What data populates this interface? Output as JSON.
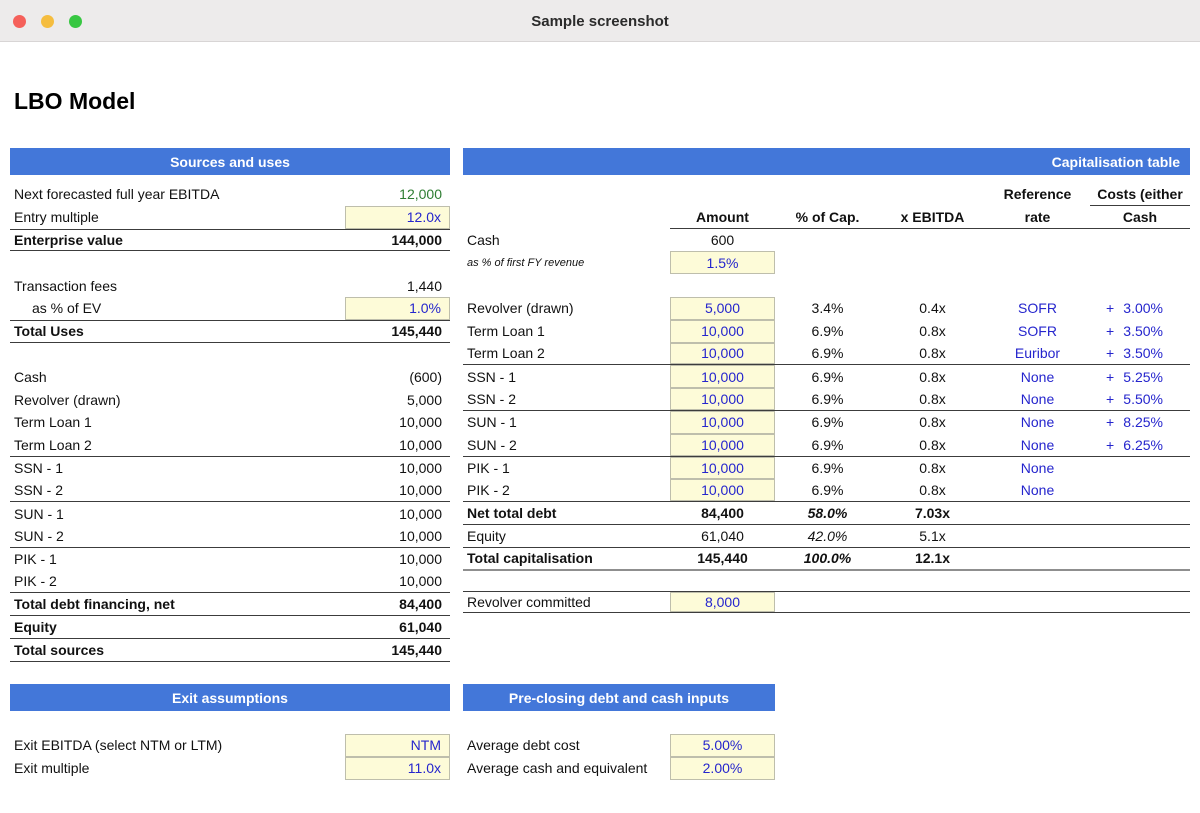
{
  "window": {
    "title": "Sample screenshot"
  },
  "page_title": "LBO Model",
  "colors": {
    "header_bar": "#4377D9",
    "input_bg": "#FDFBD8",
    "input_text": "#2525CD",
    "calc_green": "#2E7D32"
  },
  "sources_and_uses": {
    "title": "Sources and uses",
    "rows": [
      {
        "label": "Next forecasted full year EBITDA",
        "value": "12,000",
        "vclass": "green"
      },
      {
        "label": "Entry multiple",
        "value": "12.0x",
        "input": true
      },
      {
        "label": "Enterprise value",
        "value": "144,000",
        "bold": true,
        "bt": true,
        "bb": true
      },
      {
        "blank": true
      },
      {
        "label": "Transaction fees",
        "value": "1,440"
      },
      {
        "label": "as % of EV",
        "value": "1.0%",
        "input": true,
        "indent": true
      },
      {
        "label": "Total Uses",
        "value": "145,440",
        "bold": true,
        "bt": true,
        "bb": true
      },
      {
        "blank": true
      },
      {
        "label": "Cash",
        "value": "(600)"
      },
      {
        "label": "Revolver (drawn)",
        "value": "5,000"
      },
      {
        "label": "Term Loan 1",
        "value": "10,000"
      },
      {
        "label": "Term Loan 2",
        "value": "10,000",
        "bb": true
      },
      {
        "label": "SSN - 1",
        "value": "10,000"
      },
      {
        "label": "SSN - 2",
        "value": "10,000",
        "bb": true
      },
      {
        "label": "SUN - 1",
        "value": "10,000"
      },
      {
        "label": "SUN - 2",
        "value": "10,000",
        "bb": true
      },
      {
        "label": "PIK - 1",
        "value": "10,000"
      },
      {
        "label": "PIK - 2",
        "value": "10,000",
        "bb": true
      },
      {
        "label": "Total debt financing, net",
        "value": "84,400",
        "bold": true,
        "bb": true
      },
      {
        "label": "Equity",
        "value": "61,040",
        "bold": true,
        "bb": true
      },
      {
        "label": "Total sources",
        "value": "145,440",
        "bold": true,
        "bb": true
      }
    ]
  },
  "capitalisation": {
    "title": "Capitalisation table",
    "cost_prefix": "+",
    "col_headers": {
      "ref_line1": "Reference",
      "ref_line2": "rate",
      "cost_line1": "Costs (either",
      "cost_line2": "Cash",
      "amount": "Amount",
      "pct": "% of Cap.",
      "ebitda": "x EBITDA"
    },
    "rows": [
      {
        "label": "Cash",
        "amount": "600"
      },
      {
        "label": "as % of first FY revenue",
        "small": true,
        "amount": "1.5%",
        "ainput": true
      },
      {
        "blank": true
      },
      {
        "label": "Revolver (drawn)",
        "amount": "5,000",
        "ainput": true,
        "pct": "3.4%",
        "ebitda": "0.4x",
        "ref": "SOFR",
        "cost": "3.00%"
      },
      {
        "label": "Term Loan 1",
        "amount": "10,000",
        "ainput": true,
        "pct": "6.9%",
        "ebitda": "0.8x",
        "ref": "SOFR",
        "cost": "3.50%"
      },
      {
        "label": "Term Loan 2",
        "amount": "10,000",
        "ainput": true,
        "pct": "6.9%",
        "ebitda": "0.8x",
        "ref": "Euribor",
        "cost": "3.50%",
        "bb": true
      },
      {
        "label": "SSN - 1",
        "amount": "10,000",
        "ainput": true,
        "pct": "6.9%",
        "ebitda": "0.8x",
        "ref": "None",
        "cost": "5.25%"
      },
      {
        "label": "SSN - 2",
        "amount": "10,000",
        "ainput": true,
        "pct": "6.9%",
        "ebitda": "0.8x",
        "ref": "None",
        "cost": "5.50%",
        "bb": true
      },
      {
        "label": "SUN - 1",
        "amount": "10,000",
        "ainput": true,
        "pct": "6.9%",
        "ebitda": "0.8x",
        "ref": "None",
        "cost": "8.25%"
      },
      {
        "label": "SUN - 2",
        "amount": "10,000",
        "ainput": true,
        "pct": "6.9%",
        "ebitda": "0.8x",
        "ref": "None",
        "cost": "6.25%",
        "bb": true
      },
      {
        "label": "PIK - 1",
        "amount": "10,000",
        "ainput": true,
        "pct": "6.9%",
        "ebitda": "0.8x",
        "ref": "None"
      },
      {
        "label": "PIK - 2",
        "amount": "10,000",
        "ainput": true,
        "pct": "6.9%",
        "ebitda": "0.8x",
        "ref": "None",
        "bb": true
      },
      {
        "label": "Net total debt",
        "amount": "84,400",
        "pct": "58.0%",
        "pct_italic": true,
        "ebitda": "7.03x",
        "bold": true,
        "bb": true
      },
      {
        "label": "Equity",
        "amount": "61,040",
        "pct": "42.0%",
        "pct_italic": true,
        "ebitda": "5.1x",
        "bb": true
      },
      {
        "label": "Total capitalisation",
        "amount": "145,440",
        "pct": "100.0%",
        "pct_italic": true,
        "ebitda": "12.1x",
        "bold": true,
        "bb2": true
      },
      {
        "blank": true,
        "short": true
      },
      {
        "label": "Revolver committed",
        "amount": "8,000",
        "ainput": true,
        "bt": true,
        "bb": true
      }
    ]
  },
  "exit_assumptions": {
    "title": "Exit assumptions",
    "rows": [
      {
        "label": "Exit EBITDA (select NTM or LTM)",
        "value": "NTM",
        "input": true
      },
      {
        "label": "Exit multiple",
        "value": "11.0x",
        "input": true
      }
    ]
  },
  "preclosing": {
    "title": "Pre-closing debt and cash inputs",
    "rows": [
      {
        "label": "Average debt cost",
        "value": "5.00%",
        "input": true,
        "center": true
      },
      {
        "label": "Average cash and equivalent",
        "value": "2.00%",
        "input": true,
        "center": true
      }
    ]
  }
}
